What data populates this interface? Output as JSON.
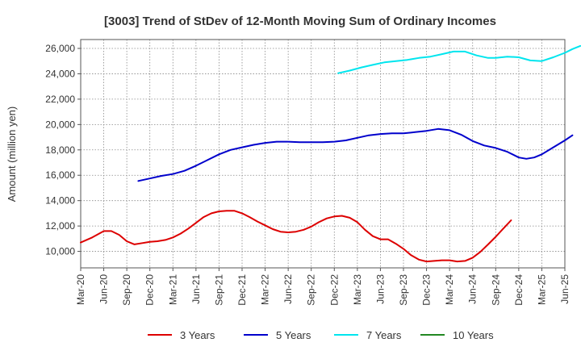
{
  "chart_data": {
    "type": "line",
    "title": "[3003]  Trend of StDev of 12-Month Moving Sum of Ordinary Incomes",
    "xlabel": "",
    "ylabel": "Amount (million yen)",
    "ylim": [
      8700,
      26700
    ],
    "yticks": [
      10000,
      12000,
      14000,
      16000,
      18000,
      20000,
      22000,
      24000,
      26000
    ],
    "ytick_labels": [
      "10,000",
      "12,000",
      "14,000",
      "16,000",
      "18,000",
      "20,000",
      "22,000",
      "24,000",
      "26,000"
    ],
    "categories": [
      "Mar-20",
      "Jun-20",
      "Sep-20",
      "Dec-20",
      "Mar-21",
      "Jun-21",
      "Sep-21",
      "Dec-21",
      "Mar-22",
      "Jun-22",
      "Sep-22",
      "Dec-22",
      "Mar-23",
      "Jun-23",
      "Sep-23",
      "Dec-23",
      "Mar-24",
      "Jun-24",
      "Sep-24",
      "Dec-24",
      "Mar-25",
      "Jun-25"
    ],
    "grid": true,
    "legend_position": "bottom",
    "series": [
      {
        "name": "3 Years",
        "color": "#dd0000",
        "points": [
          [
            0,
            10700
          ],
          [
            0.5,
            11100
          ],
          [
            1,
            11600
          ],
          [
            1.33,
            11600
          ],
          [
            1.67,
            11300
          ],
          [
            2,
            10800
          ],
          [
            2.33,
            10550
          ],
          [
            2.67,
            10650
          ],
          [
            3,
            10750
          ],
          [
            3.33,
            10800
          ],
          [
            3.67,
            10900
          ],
          [
            4,
            11100
          ],
          [
            4.33,
            11400
          ],
          [
            4.67,
            11800
          ],
          [
            5,
            12250
          ],
          [
            5.33,
            12700
          ],
          [
            5.67,
            13000
          ],
          [
            6,
            13150
          ],
          [
            6.33,
            13200
          ],
          [
            6.67,
            13200
          ],
          [
            7,
            13000
          ],
          [
            7.33,
            12700
          ],
          [
            7.67,
            12350
          ],
          [
            8,
            12050
          ],
          [
            8.33,
            11750
          ],
          [
            8.67,
            11550
          ],
          [
            9,
            11500
          ],
          [
            9.33,
            11550
          ],
          [
            9.67,
            11700
          ],
          [
            10,
            11950
          ],
          [
            10.33,
            12300
          ],
          [
            10.67,
            12600
          ],
          [
            11,
            12750
          ],
          [
            11.33,
            12800
          ],
          [
            11.67,
            12650
          ],
          [
            12,
            12300
          ],
          [
            12.33,
            11700
          ],
          [
            12.67,
            11200
          ],
          [
            13,
            10950
          ],
          [
            13.33,
            10950
          ],
          [
            13.67,
            10600
          ],
          [
            14,
            10200
          ],
          [
            14.33,
            9700
          ],
          [
            14.67,
            9350
          ],
          [
            15,
            9200
          ],
          [
            15.33,
            9250
          ],
          [
            15.67,
            9300
          ],
          [
            16,
            9300
          ],
          [
            16.33,
            9200
          ],
          [
            16.67,
            9250
          ],
          [
            17,
            9500
          ],
          [
            17.33,
            9950
          ],
          [
            17.67,
            10550
          ],
          [
            18,
            11150
          ],
          [
            18.33,
            11800
          ],
          [
            18.67,
            12450
          ]
        ]
      },
      {
        "name": "5 Years",
        "color": "#0000cc",
        "points": [
          [
            2.5,
            15550
          ],
          [
            3,
            15750
          ],
          [
            3.5,
            15950
          ],
          [
            4,
            16100
          ],
          [
            4.5,
            16350
          ],
          [
            5,
            16750
          ],
          [
            5.5,
            17200
          ],
          [
            6,
            17650
          ],
          [
            6.5,
            18000
          ],
          [
            7,
            18200
          ],
          [
            7.5,
            18400
          ],
          [
            8,
            18550
          ],
          [
            8.5,
            18650
          ],
          [
            9,
            18650
          ],
          [
            9.5,
            18600
          ],
          [
            10,
            18600
          ],
          [
            10.5,
            18600
          ],
          [
            11,
            18650
          ],
          [
            11.5,
            18750
          ],
          [
            12,
            18950
          ],
          [
            12.5,
            19150
          ],
          [
            13,
            19250
          ],
          [
            13.5,
            19300
          ],
          [
            14,
            19300
          ],
          [
            14.5,
            19400
          ],
          [
            15,
            19500
          ],
          [
            15.5,
            19650
          ],
          [
            16,
            19550
          ],
          [
            16.5,
            19200
          ],
          [
            17,
            18700
          ],
          [
            17.5,
            18350
          ],
          [
            18,
            18150
          ],
          [
            18.5,
            17850
          ],
          [
            19,
            17400
          ],
          [
            19.33,
            17300
          ],
          [
            19.67,
            17400
          ],
          [
            20,
            17650
          ],
          [
            20.5,
            18200
          ],
          [
            21,
            18750
          ],
          [
            21.33,
            19150
          ]
        ]
      },
      {
        "name": "7 Years",
        "color": "#00e5ee",
        "points": [
          [
            11.17,
            24050
          ],
          [
            11.67,
            24250
          ],
          [
            12.17,
            24500
          ],
          [
            12.67,
            24700
          ],
          [
            13.17,
            24900
          ],
          [
            13.67,
            25000
          ],
          [
            14.17,
            25100
          ],
          [
            14.67,
            25250
          ],
          [
            15.17,
            25350
          ],
          [
            15.67,
            25550
          ],
          [
            16.17,
            25750
          ],
          [
            16.67,
            25750
          ],
          [
            17.17,
            25450
          ],
          [
            17.67,
            25250
          ],
          [
            18,
            25250
          ],
          [
            18.5,
            25350
          ],
          [
            19,
            25300
          ],
          [
            19.5,
            25050
          ],
          [
            20,
            25000
          ],
          [
            20.5,
            25300
          ],
          [
            21,
            25650
          ],
          [
            21.33,
            25950
          ],
          [
            21.67,
            26200
          ]
        ]
      },
      {
        "name": "10 Years",
        "color": "#228822",
        "points": []
      }
    ]
  }
}
